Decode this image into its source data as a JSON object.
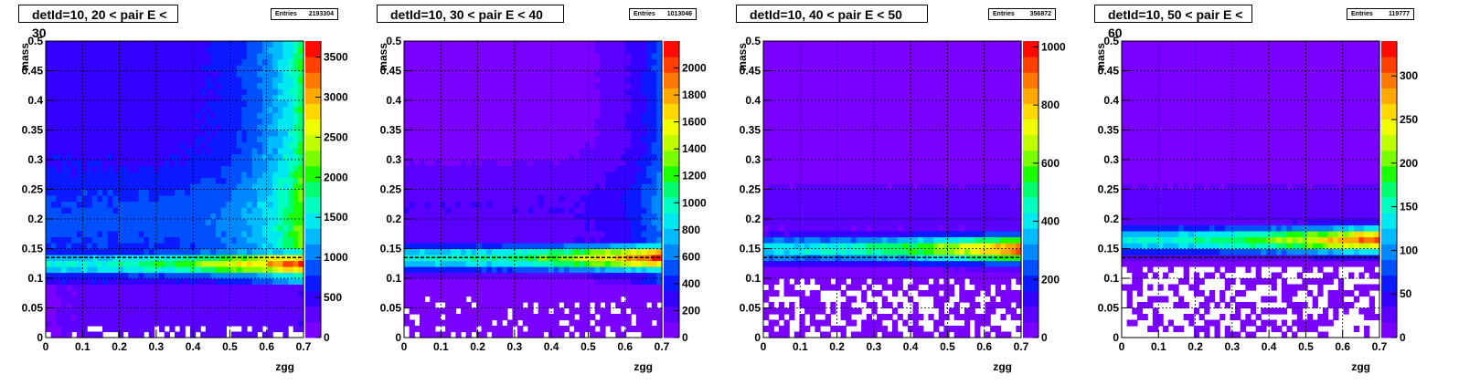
{
  "chart_data": [
    {
      "type": "heatmap",
      "title": "detId=10, 20 < pair E < 30",
      "stats": {
        "label": "Entries",
        "value": "2193304"
      },
      "xlabel": "zgg",
      "ylabel": "mass",
      "xlim": [
        0,
        0.7
      ],
      "ylim": [
        0,
        0.5
      ],
      "xticks": [
        "0",
        "0.1",
        "0.2",
        "0.3",
        "0.4",
        "0.5",
        "0.6",
        "0.7"
      ],
      "yticks": [
        "0",
        "0.05",
        "0.1",
        "0.15",
        "0.2",
        "0.25",
        "0.3",
        "0.35",
        "0.4",
        "0.45",
        "0.5"
      ],
      "zmax": 3700,
      "zticks": [
        "0",
        "500",
        "1000",
        "1500",
        "2000",
        "2500",
        "3000",
        "3500"
      ],
      "ztick_values": [
        0,
        500,
        1000,
        1500,
        2000,
        2500,
        3000,
        3500
      ],
      "peak_mass": 0.125,
      "reference_line_mass": 0.135,
      "grid": true
    },
    {
      "type": "heatmap",
      "title": "detId=10, 30 < pair E < 40",
      "stats": {
        "label": "Entries",
        "value": "1013046"
      },
      "xlabel": "zgg",
      "ylabel": "mass",
      "xlim": [
        0,
        0.7
      ],
      "ylim": [
        0,
        0.5
      ],
      "xticks": [
        "0",
        "0.1",
        "0.2",
        "0.3",
        "0.4",
        "0.5",
        "0.6",
        "0.7"
      ],
      "yticks": [
        "0",
        "0.05",
        "0.1",
        "0.15",
        "0.2",
        "0.25",
        "0.3",
        "0.35",
        "0.4",
        "0.45",
        "0.5"
      ],
      "zmax": 2200,
      "zticks": [
        "0",
        "200",
        "400",
        "600",
        "800",
        "1000",
        "1200",
        "1400",
        "1600",
        "1800",
        "2000"
      ],
      "ztick_values": [
        0,
        200,
        400,
        600,
        800,
        1000,
        1200,
        1400,
        1600,
        1800,
        2000
      ],
      "peak_mass": 0.135,
      "reference_line_mass": 0.135,
      "grid": true
    },
    {
      "type": "heatmap",
      "title": "detId=10, 40 < pair E < 50",
      "stats": {
        "label": "Entries",
        "value": "356872"
      },
      "xlabel": "zgg",
      "ylabel": "mass",
      "xlim": [
        0,
        0.7
      ],
      "ylim": [
        0,
        0.5
      ],
      "xticks": [
        "0",
        "0.1",
        "0.2",
        "0.3",
        "0.4",
        "0.5",
        "0.6",
        "0.7"
      ],
      "yticks": [
        "0",
        "0.05",
        "0.1",
        "0.15",
        "0.2",
        "0.25",
        "0.3",
        "0.35",
        "0.4",
        "0.45",
        "0.5"
      ],
      "zmax": 1020,
      "zticks": [
        "0",
        "200",
        "400",
        "600",
        "800",
        "1000"
      ],
      "ztick_values": [
        0,
        200,
        400,
        600,
        800,
        1000
      ],
      "peak_mass": 0.15,
      "reference_line_mass": 0.135,
      "grid": true
    },
    {
      "type": "heatmap",
      "title": "detId=10, 50 < pair E < 60",
      "stats": {
        "label": "Entries",
        "value": "119777"
      },
      "xlabel": "zgg",
      "ylabel": "mass",
      "xlim": [
        0,
        0.7
      ],
      "ylim": [
        0,
        0.5
      ],
      "xticks": [
        "0",
        "0.1",
        "0.2",
        "0.3",
        "0.4",
        "0.5",
        "0.6",
        "0.7"
      ],
      "yticks": [
        "0",
        "0.05",
        "0.1",
        "0.15",
        "0.2",
        "0.25",
        "0.3",
        "0.35",
        "0.4",
        "0.45",
        "0.5"
      ],
      "zmax": 340,
      "zticks": [
        "0",
        "50",
        "100",
        "150",
        "200",
        "250",
        "300"
      ],
      "ztick_values": [
        0,
        50,
        100,
        150,
        200,
        250,
        300
      ],
      "peak_mass": 0.165,
      "reference_line_mass": 0.135,
      "grid": true
    }
  ]
}
